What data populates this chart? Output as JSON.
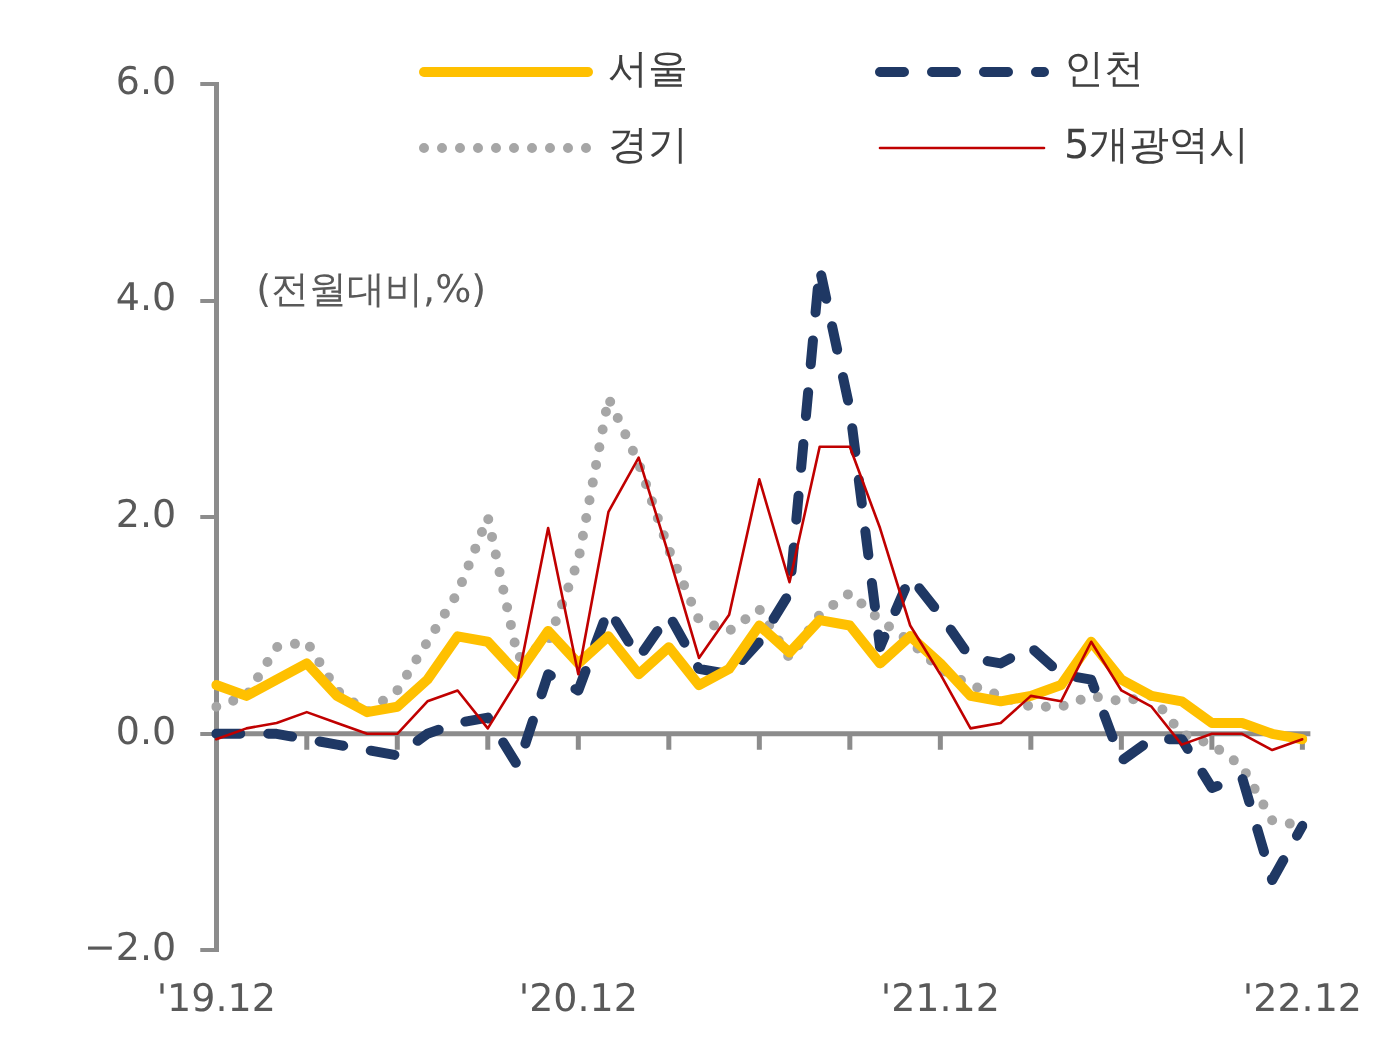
{
  "chart_data": {
    "type": "line",
    "categories": [
      "'19.12",
      null,
      null,
      null,
      null,
      null,
      null,
      null,
      null,
      null,
      null,
      null,
      "'20.12",
      null,
      null,
      null,
      null,
      null,
      null,
      null,
      null,
      null,
      null,
      null,
      "'21.12",
      null,
      null,
      null,
      null,
      null,
      null,
      null,
      null,
      null,
      null,
      null,
      "'22.12"
    ],
    "ylim": [
      -2,
      6
    ],
    "yticks": [
      {
        "value": -2,
        "label": "−2.0"
      },
      {
        "value": 0,
        "label": "0.0"
      },
      {
        "value": 2,
        "label": "2.0"
      },
      {
        "value": 4,
        "label": "4.0"
      },
      {
        "value": 6,
        "label": "6.0"
      }
    ],
    "grid": false,
    "legend": "top",
    "marker": "none",
    "ref_lines": [
      {
        "axis": "y",
        "value": 0,
        "color": "#8c8c8c"
      }
    ],
    "annotations": [
      "(전월대비,%)"
    ],
    "series": [
      {
        "name": "서울",
        "color": "#ffc000",
        "line_style": "solid",
        "values": [
          0.45,
          0.35,
          0.5,
          0.65,
          0.35,
          0.2,
          0.25,
          0.5,
          0.9,
          0.85,
          0.55,
          0.95,
          0.65,
          0.9,
          0.55,
          0.8,
          0.45,
          0.6,
          1.0,
          0.75,
          1.05,
          1.0,
          0.65,
          0.9,
          0.65,
          0.35,
          0.3,
          0.35,
          0.45,
          0.85,
          0.5,
          0.35,
          0.3,
          0.1,
          0.1,
          0.0,
          -0.05
        ]
      },
      {
        "name": "인천",
        "color": "#1f3864",
        "line_style": "dashed",
        "values": [
          0.0,
          0.0,
          0.0,
          -0.05,
          -0.1,
          -0.15,
          -0.2,
          0.0,
          0.1,
          0.15,
          -0.3,
          0.55,
          0.4,
          1.15,
          0.7,
          1.1,
          0.6,
          0.55,
          0.85,
          1.3,
          4.3,
          3.0,
          0.8,
          1.45,
          1.1,
          0.7,
          0.65,
          0.8,
          0.55,
          0.5,
          -0.25,
          -0.05,
          -0.05,
          -0.5,
          -0.4,
          -1.35,
          -0.85
        ]
      },
      {
        "name": "경기",
        "color": "#a6a6a6",
        "line_style": "dotted",
        "values": [
          0.25,
          0.35,
          0.8,
          0.85,
          0.4,
          0.2,
          0.4,
          0.85,
          1.3,
          2.0,
          0.7,
          0.85,
          1.6,
          3.1,
          2.5,
          1.7,
          1.05,
          0.95,
          1.15,
          0.7,
          1.1,
          1.3,
          1.05,
          0.85,
          0.6,
          0.45,
          0.35,
          0.25,
          0.25,
          0.35,
          0.3,
          0.35,
          0.0,
          -0.1,
          -0.3,
          -0.8,
          -0.85
        ]
      },
      {
        "name": "5개광역시",
        "color": "#c00000",
        "line_style": "solid",
        "values": [
          -0.05,
          0.05,
          0.1,
          0.2,
          0.1,
          0.0,
          0.0,
          0.3,
          0.4,
          0.05,
          0.5,
          1.9,
          0.55,
          2.05,
          2.55,
          1.65,
          0.7,
          1.1,
          2.35,
          1.4,
          2.65,
          2.65,
          1.9,
          1.0,
          0.55,
          0.05,
          0.1,
          0.35,
          0.3,
          0.85,
          0.4,
          0.25,
          -0.1,
          0.0,
          0.0,
          -0.15,
          -0.05
        ]
      }
    ]
  }
}
